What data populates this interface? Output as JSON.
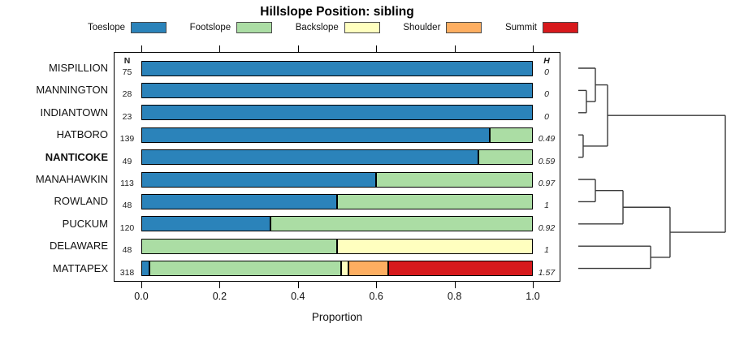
{
  "chart_data": {
    "type": "bar",
    "orientation": "horizontal",
    "stacked": true,
    "title": "Hillslope Position: sibling",
    "xlabel": "Proportion",
    "xlim": [
      0,
      1
    ],
    "x_ticks": [
      "0.0",
      "0.2",
      "0.4",
      "0.6",
      "0.8",
      "1.0"
    ],
    "grid": false,
    "legend_position": "top",
    "n_column_header": "N",
    "h_column_header": "H",
    "categories": [
      "Toeslope",
      "Footslope",
      "Backslope",
      "Shoulder",
      "Summit"
    ],
    "colors": {
      "Toeslope": "#2B83BA",
      "Footslope": "#ABDDA4",
      "Backslope": "#FFFFBF",
      "Shoulder": "#FDAE61",
      "Summit": "#D7191C"
    },
    "rows": [
      {
        "label": "MISPILLION",
        "n": "75",
        "h": "0",
        "emphasis": false,
        "values": [
          1.0,
          0.0,
          0.0,
          0.0,
          0.0
        ]
      },
      {
        "label": "MANNINGTON",
        "n": "28",
        "h": "0",
        "emphasis": false,
        "values": [
          1.0,
          0.0,
          0.0,
          0.0,
          0.0
        ]
      },
      {
        "label": "INDIANTOWN",
        "n": "23",
        "h": "0",
        "emphasis": false,
        "values": [
          1.0,
          0.0,
          0.0,
          0.0,
          0.0
        ]
      },
      {
        "label": "HATBORO",
        "n": "139",
        "h": "0.49",
        "emphasis": false,
        "values": [
          0.89,
          0.11,
          0.0,
          0.0,
          0.0
        ]
      },
      {
        "label": "NANTICOKE",
        "n": "49",
        "h": "0.59",
        "emphasis": true,
        "values": [
          0.86,
          0.14,
          0.0,
          0.0,
          0.0
        ]
      },
      {
        "label": "MANAHAWKIN",
        "n": "113",
        "h": "0.97",
        "emphasis": false,
        "values": [
          0.6,
          0.4,
          0.0,
          0.0,
          0.0
        ]
      },
      {
        "label": "ROWLAND",
        "n": "48",
        "h": "1",
        "emphasis": false,
        "values": [
          0.5,
          0.5,
          0.0,
          0.0,
          0.0
        ]
      },
      {
        "label": "PUCKUM",
        "n": "120",
        "h": "0.92",
        "emphasis": false,
        "values": [
          0.33,
          0.67,
          0.0,
          0.0,
          0.0
        ]
      },
      {
        "label": "DELAWARE",
        "n": "48",
        "h": "1",
        "emphasis": false,
        "values": [
          0.0,
          0.5,
          0.5,
          0.0,
          0.0
        ]
      },
      {
        "label": "MATTAPEX",
        "n": "318",
        "h": "1.57",
        "emphasis": false,
        "values": [
          0.02,
          0.49,
          0.02,
          0.1,
          0.37
        ]
      }
    ],
    "dendrogram": {
      "leaf_order": [
        "MISPILLION",
        "MANNINGTON",
        "INDIANTOWN",
        "HATBORO",
        "NANTICOKE",
        "MANAHAWKIN",
        "ROWLAND",
        "PUCKUM",
        "DELAWARE",
        "MATTAPEX"
      ],
      "root": {
        "h": 1.0,
        "children": [
          {
            "h": 0.199,
            "children": [
              {
                "h": 0.116,
                "children": [
                  {
                    "leaf": "MISPILLION"
                  },
                  {
                    "h": 0.055,
                    "children": [
                      {
                        "leaf": "MANNINGTON"
                      },
                      {
                        "leaf": "INDIANTOWN"
                      }
                    ]
                  }
                ]
              },
              {
                "h": 0.033,
                "children": [
                  {
                    "leaf": "HATBORO"
                  },
                  {
                    "leaf": "NANTICOKE"
                  }
                ]
              }
            ]
          },
          {
            "h": 0.624,
            "children": [
              {
                "h": 0.304,
                "children": [
                  {
                    "h": 0.116,
                    "children": [
                      {
                        "leaf": "MANAHAWKIN"
                      },
                      {
                        "leaf": "ROWLAND"
                      }
                    ]
                  },
                  {
                    "leaf": "PUCKUM"
                  }
                ]
              },
              {
                "h": 0.492,
                "children": [
                  {
                    "leaf": "DELAWARE"
                  },
                  {
                    "leaf": "MATTAPEX"
                  }
                ]
              }
            ]
          }
        ]
      }
    }
  }
}
